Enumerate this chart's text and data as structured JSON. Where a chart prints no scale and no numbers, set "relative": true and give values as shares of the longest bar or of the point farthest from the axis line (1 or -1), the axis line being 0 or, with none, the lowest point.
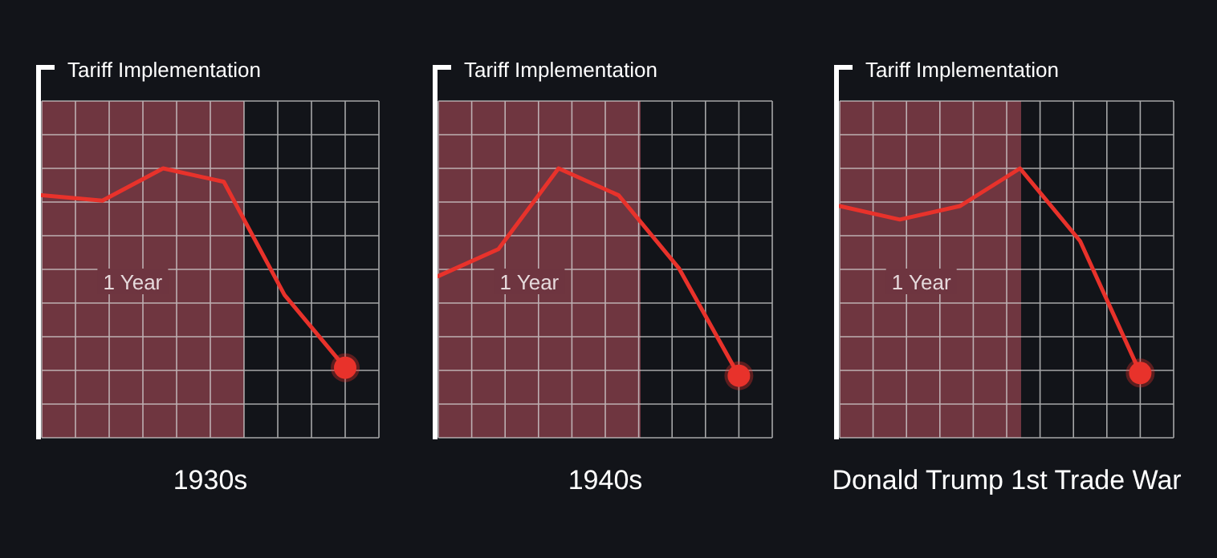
{
  "chart_data": [
    {
      "type": "line",
      "relative": true,
      "title": "1930s",
      "ylabel": "Tariff Implementation",
      "categories": [
        null,
        null,
        null,
        null,
        null,
        null
      ],
      "grid": true,
      "series": [
        {
          "color": "#e8322b",
          "values": [
            0.9,
            0.88,
            1,
            0.95,
            0.53,
            0.26
          ]
        }
      ],
      "annotations": [
        "1 Year"
      ]
    },
    {
      "type": "line",
      "relative": true,
      "title": "1940s",
      "ylabel": "Tariff Implementation",
      "categories": [
        null,
        null,
        null,
        null,
        null,
        null
      ],
      "grid": true,
      "series": [
        {
          "color": "#e8322b",
          "values": [
            0.6,
            0.7,
            1,
            0.9,
            0.63,
            0.23
          ]
        }
      ],
      "annotations": [
        "1 Year"
      ]
    },
    {
      "type": "line",
      "relative": true,
      "title": "Donald Trump 1st Trade War",
      "ylabel": "Tariff Implementation",
      "categories": [
        null,
        null,
        null,
        null,
        null,
        null
      ],
      "grid": true,
      "series": [
        {
          "color": "#e8322b",
          "values": [
            0.86,
            0.81,
            0.86,
            1,
            0.73,
            0.24
          ]
        }
      ],
      "annotations": [
        "1 Year"
      ]
    }
  ]
}
